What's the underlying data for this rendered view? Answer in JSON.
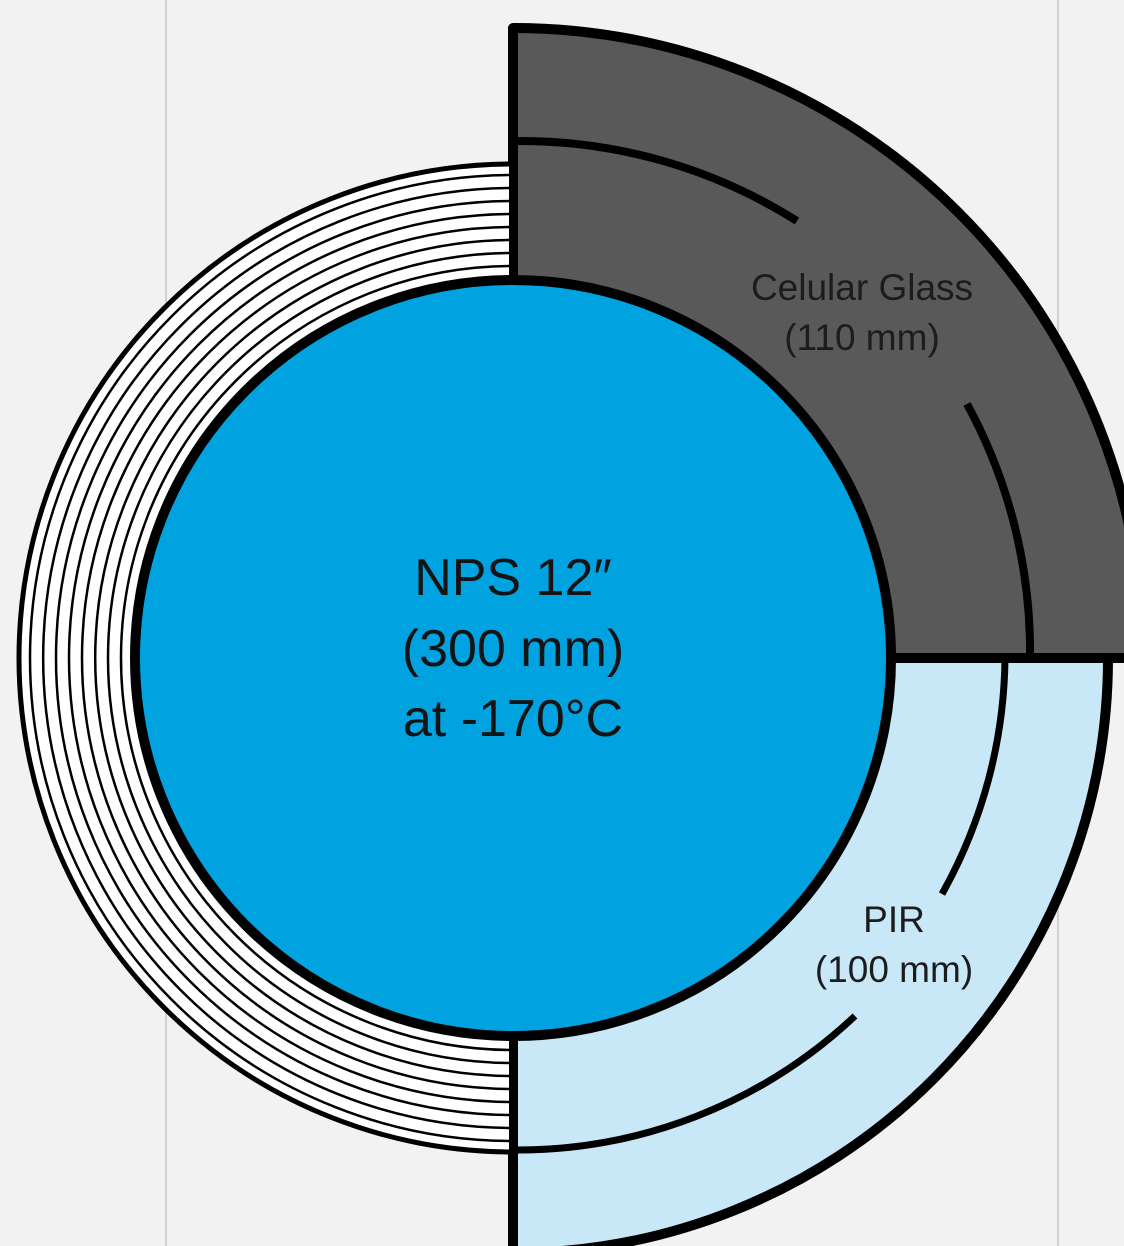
{
  "diagram": {
    "colors": {
      "background": "#f2f2f2",
      "guide_line": "#d2d2d2",
      "pipe_fill": "#00a3e0",
      "cellular_glass_fill": "#595959",
      "pir_fill": "#c8e8f8",
      "layered_fill": "#ffffff",
      "stroke": "#000000"
    },
    "pipe": {
      "line1": "NPS  12″",
      "line2": "(300 mm)",
      "line3": "at -170°C"
    },
    "cellular_glass": {
      "name": "Celular Glass",
      "thickness": "(110 mm)"
    },
    "pir": {
      "name": "PIR",
      "thickness": "(100 mm)"
    }
  }
}
